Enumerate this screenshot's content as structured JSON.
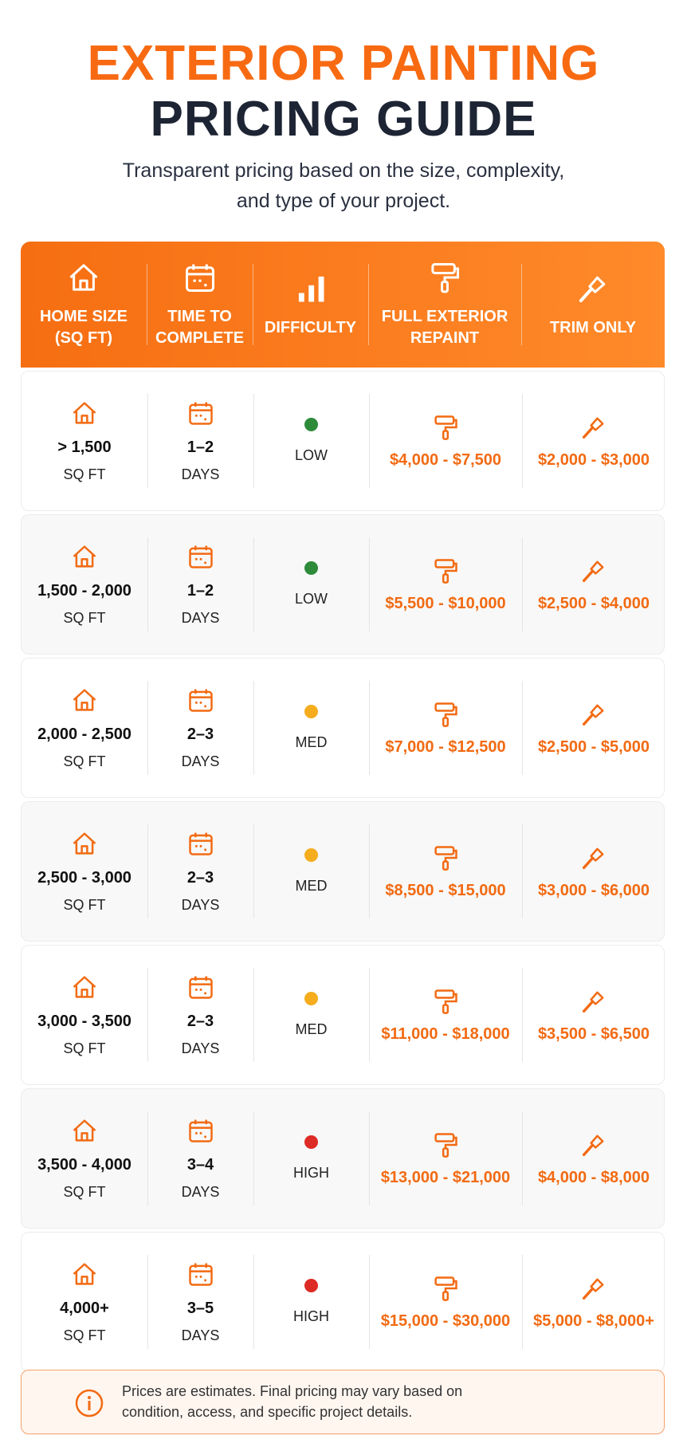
{
  "header": {
    "title_line1": "EXTERIOR PAINTING",
    "title_line2": "PRICING GUIDE",
    "subtitle_line1": "Transparent pricing based on the size, complexity,",
    "subtitle_line2": "and type of your project."
  },
  "table": {
    "columns": [
      [
        "HOME SIZE",
        "(SQ FT)"
      ],
      [
        "TIME TO",
        "COMPLETE"
      ],
      [
        "DIFFICULTY"
      ],
      [
        "FULL EXTERIOR",
        "REPAINT"
      ],
      [
        "TRIM ONLY"
      ]
    ],
    "rows": [
      {
        "size": "> 1,500",
        "size_unit": "SQ FT",
        "time": "1–2",
        "time_unit": "DAYS",
        "difficulty": "LOW",
        "dot_color": "#2e8b3a",
        "full": "$4,000 - $7,500",
        "trim": "$2,000 - $3,000"
      },
      {
        "size": "1,500 - 2,000",
        "size_unit": "SQ FT",
        "time": "1–2",
        "time_unit": "DAYS",
        "difficulty": "LOW",
        "dot_color": "#2e8b3a",
        "full": "$5,500 - $10,000",
        "trim": "$2,500 - $4,000"
      },
      {
        "size": "2,000 - 2,500",
        "size_unit": "SQ FT",
        "time": "2–3",
        "time_unit": "DAYS",
        "difficulty": "MED",
        "dot_color": "#f5ad1e",
        "full": "$7,000 - $12,500",
        "trim": "$2,500 - $5,000"
      },
      {
        "size": "2,500 - 3,000",
        "size_unit": "SQ FT",
        "time": "2–3",
        "time_unit": "DAYS",
        "difficulty": "MED",
        "dot_color": "#f5ad1e",
        "full": "$8,500 - $15,000",
        "trim": "$3,000 - $6,000"
      },
      {
        "size": "3,000 - 3,500",
        "size_unit": "SQ FT",
        "time": "2–3",
        "time_unit": "DAYS",
        "difficulty": "MED",
        "dot_color": "#f5ad1e",
        "full": "$11,000 - $18,000",
        "trim": "$3,500 - $6,500"
      },
      {
        "size": "3,500 - 4,000",
        "size_unit": "SQ FT",
        "time": "3–4",
        "time_unit": "DAYS",
        "difficulty": "HIGH",
        "dot_color": "#dd2b25",
        "full": "$13,000 - $21,000",
        "trim": "$4,000 - $8,000"
      },
      {
        "size": "4,000+",
        "size_unit": "SQ FT",
        "time": "3–5",
        "time_unit": "DAYS",
        "difficulty": "HIGH",
        "dot_color": "#dd2b25",
        "full": "$15,000 - $30,000",
        "trim": "$5,000 - $8,000+"
      }
    ]
  },
  "note": {
    "line1": "Prices are estimates. Final pricing may vary based on",
    "line2": "condition, access, and specific project details."
  }
}
